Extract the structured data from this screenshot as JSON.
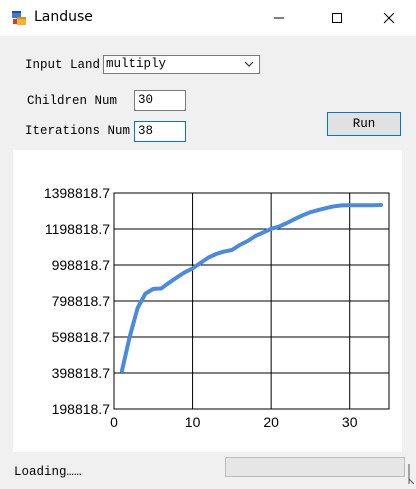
{
  "window": {
    "title": "Landuse",
    "icon": "app-window-icon",
    "controls": [
      "minimize-icon",
      "maximize-icon",
      "close-icon"
    ]
  },
  "form": {
    "input_land_label": "Input Land",
    "input_land_value": "multiply",
    "children_num_label": "Children Num",
    "children_num_value": "30",
    "iterations_num_label": "Iterations Num",
    "iterations_num_value": "38",
    "run_label": "Run"
  },
  "status": {
    "text": "Loading……",
    "progress": 0
  },
  "chart_data": {
    "type": "line",
    "title": "",
    "xlabel": "",
    "ylabel": "",
    "xlim": [
      0,
      35
    ],
    "ylim": [
      198818.7,
      1398818.7
    ],
    "xticks": [
      0,
      10,
      20,
      30
    ],
    "xtick_labels": [
      "0",
      "10",
      "20",
      "30"
    ],
    "yticks": [
      198818.7,
      398818.7,
      598818.7,
      798818.7,
      998818.7,
      1198818.7,
      1398818.7
    ],
    "ytick_labels": [
      "198818.7",
      "398818.7",
      "598818.7",
      "798818.7",
      "998818.7",
      "1198818.7",
      "1398818.7"
    ],
    "grid": true,
    "line_color": "#4a8be0",
    "series": [
      {
        "x": [
          1,
          2,
          3,
          4,
          5,
          6,
          7,
          8,
          9,
          10,
          11,
          12,
          13,
          14,
          15,
          16,
          17,
          18,
          19,
          20,
          21,
          22,
          23,
          24,
          25,
          26,
          27,
          28,
          29,
          30,
          31,
          32,
          33,
          34
        ],
        "values": [
          410000,
          600000,
          760000,
          840000,
          866000,
          868000,
          900000,
          930000,
          958000,
          980000,
          1010000,
          1040000,
          1060000,
          1073000,
          1082000,
          1110000,
          1132000,
          1160000,
          1180000,
          1200000,
          1212000,
          1232000,
          1254000,
          1275000,
          1292000,
          1304000,
          1315000,
          1325000,
          1330000,
          1331000,
          1331000,
          1331000,
          1331000,
          1332000
        ]
      }
    ]
  }
}
